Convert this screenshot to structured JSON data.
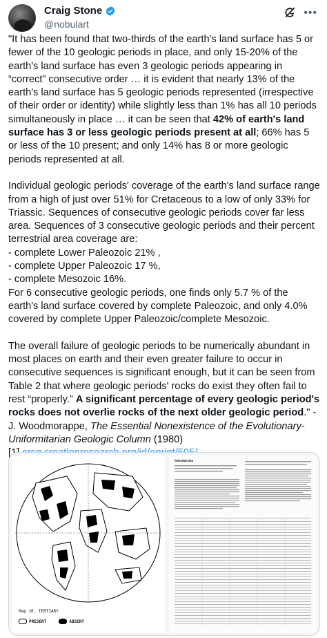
{
  "author": {
    "name": "Craig Stone",
    "handle": "@nobulart"
  },
  "paragraph1": {
    "text_a": "\"It has been found that two-thirds of the earth's land surface has 5 or fewer of the 10 geologic periods in place, and only 15-20% of the earth's land surface has even 3 geologic periods appearing in “correct” consecutive order … it is evident that nearly 13% of the earth's land surface has 5 geologic periods represented (irrespective of their order or identity) while slightly less than 1% has all 10 periods simultaneously in place … it can be seen that ",
    "bold": "42% of earth's land surface has 3 or less geologic periods present at all",
    "text_b": "; 66% has 5 or less of the 10 present; and only 14% has 8 or more geologic periods represented at all."
  },
  "paragraph2": "Individual geologic periods' coverage of the earth's land surface range from a high of just over 51% for Cretaceous to a low of only 33% for Triassic. Sequences of consecutive geologic periods cover far less area. Sequences of 3 consecutive geologic periods and their percent terrestrial area coverage are:\n- complete Lower Paleozoic 21% ,\n- complete Upper Paleozoic 17 %,\n- complete Mesozoic 16%.\nFor 6 consecutive geologic periods, one finds only 5.7 % of the earth's land surface covered by complete Paleozoic, and only 4.0% covered by complete Upper Paleozoic/complete Mesozoic.",
  "paragraph3": {
    "text_a": "The overall failure of geologic periods to be numerically abundant in most places on earth and their even greater failure to occur in consecutive sequences is significant enough, but it can be seen from Table 2 that where geologic periods' rocks do exist they often fail to rest “properly.” ",
    "bold": "A significant percentage of every geologic period's rocks does not overlie rocks of the next older geologic period",
    "text_b": ".\" - J. Woodmorappe, ",
    "italic": "The Essential Nonexistence of the Evolutionary-Uniformitarian Geologic Column",
    "text_c": " (1980)"
  },
  "reference": {
    "marker": "[1] ",
    "link": "crsq.creationresearch.org/id/eprint/505/…"
  },
  "media": {
    "map_caption": "Map 10. TERTIARY",
    "legend_present": "PRESENT",
    "legend_absent": "ABSENT",
    "doc_heading": "Introduction"
  }
}
